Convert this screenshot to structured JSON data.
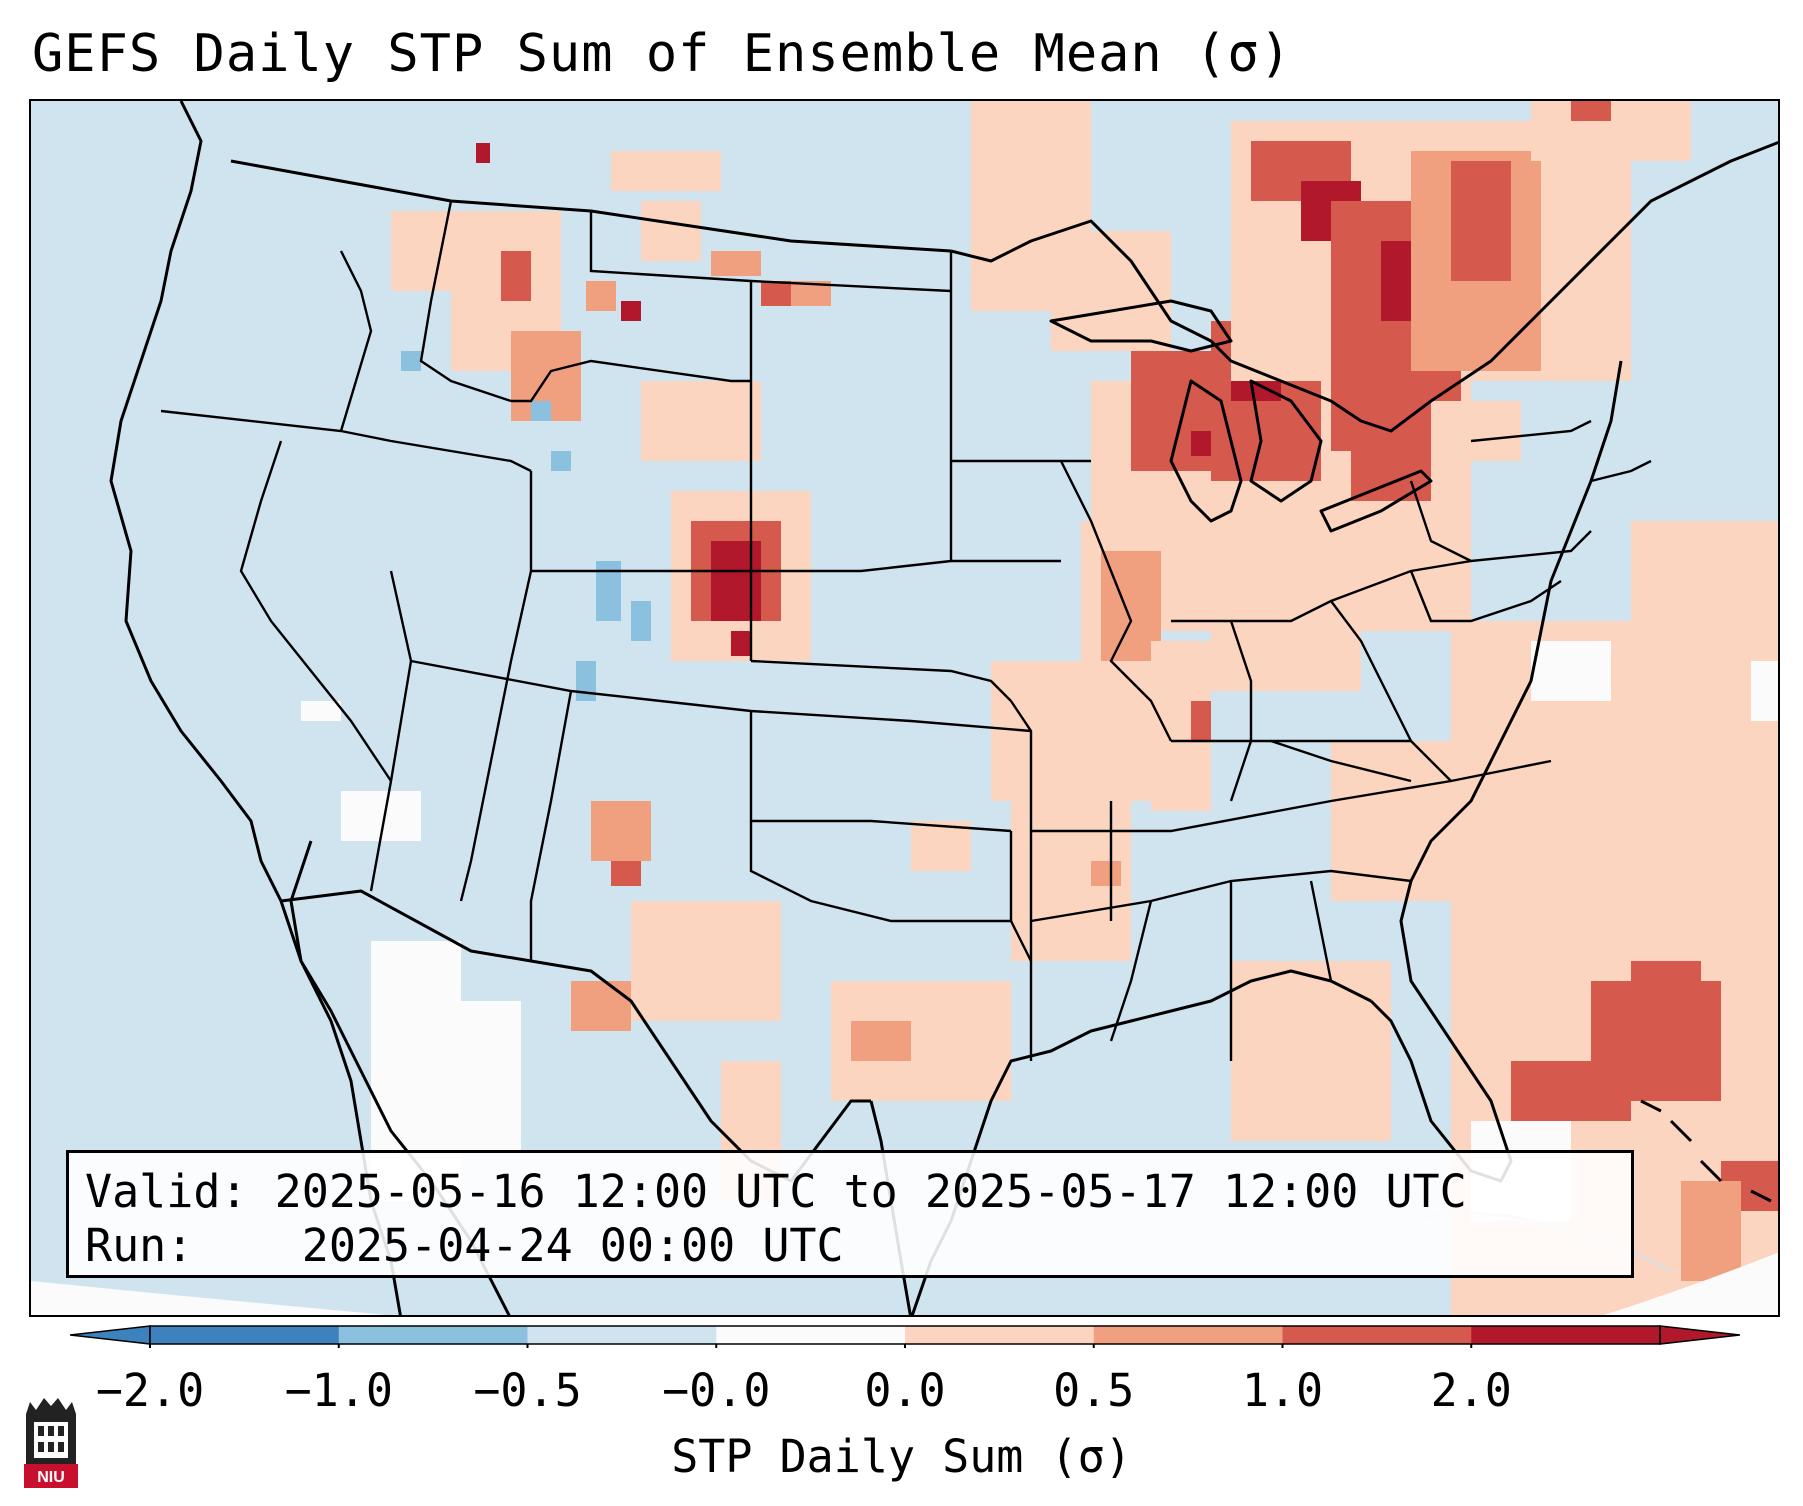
{
  "title": "GEFS Daily STP Sum of Ensemble Mean (σ)",
  "info": {
    "valid_label": "Valid:",
    "valid_value": "2025-05-16 12:00 UTC to 2025-05-17 12:00 UTC",
    "run_label": "Run:",
    "run_value": "2025-04-24 00:00 UTC"
  },
  "colorbar": {
    "label": "STP Daily Sum (σ)",
    "ticks": [
      "−2.0",
      "−1.0",
      "−0.5",
      "−0.0",
      "0.0",
      "0.5",
      "1.0",
      "2.0"
    ],
    "colors": [
      "#3d82bd",
      "#8cc0df",
      "#d0e4f0",
      "#fbfbfb",
      "#fbd5c0",
      "#f0a07e",
      "#d5594d",
      "#b2182b"
    ]
  },
  "logo": {
    "text": "NIU"
  },
  "colors": {
    "background": "#d0e4f0",
    "land_light": "#fbd5c0",
    "land_mid": "#f0a07e",
    "land_high": "#d5594d",
    "land_max": "#b2182b",
    "negative": "#8cc0df"
  }
}
